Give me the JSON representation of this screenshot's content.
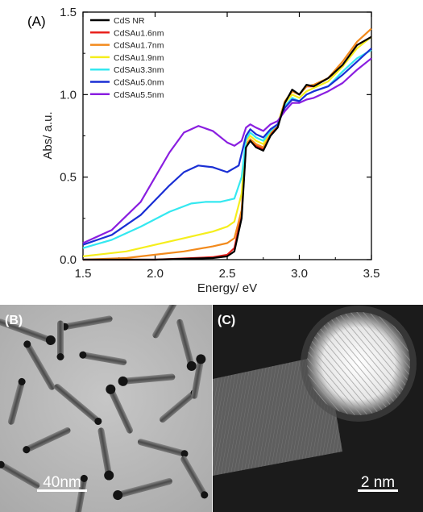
{
  "panel_labels": {
    "a": "(A)",
    "b": "(B)",
    "c": "(C)"
  },
  "scale_bars": {
    "b": {
      "label": "40nm"
    },
    "c": {
      "label": "2 nm"
    }
  },
  "chart_data": {
    "type": "line",
    "xlabel": "Energy/ eV",
    "ylabel": "Abs/ a.u.",
    "xlim": [
      1.5,
      3.5
    ],
    "ylim": [
      0.0,
      1.5
    ],
    "xticks": [
      "1.5",
      "2.0",
      "2.5",
      "3.0",
      "3.5"
    ],
    "yticks": [
      "0.0",
      "0.5",
      "1.0",
      "1.5"
    ],
    "legend_position": "top-left",
    "series": [
      {
        "name": "CdS NR",
        "color": "#000000",
        "x": [
          1.5,
          2.0,
          2.4,
          2.5,
          2.55,
          2.6,
          2.63,
          2.66,
          2.7,
          2.75,
          2.8,
          2.85,
          2.9,
          2.95,
          3.0,
          3.05,
          3.1,
          3.2,
          3.3,
          3.4,
          3.5
        ],
        "y": [
          0.0,
          0.0,
          0.01,
          0.02,
          0.05,
          0.25,
          0.68,
          0.72,
          0.68,
          0.66,
          0.75,
          0.8,
          0.95,
          1.03,
          1.0,
          1.06,
          1.05,
          1.1,
          1.18,
          1.3,
          1.35
        ]
      },
      {
        "name": "CdSAu1.6nm",
        "color": "#e8211c",
        "x": [
          1.5,
          2.0,
          2.4,
          2.5,
          2.55,
          2.6,
          2.63,
          2.66,
          2.7,
          2.75,
          2.8,
          2.85,
          2.9,
          2.95,
          3.0,
          3.05,
          3.1,
          3.2,
          3.3,
          3.4,
          3.5
        ],
        "y": [
          0.0,
          0.0,
          0.015,
          0.03,
          0.07,
          0.28,
          0.69,
          0.72,
          0.69,
          0.67,
          0.76,
          0.81,
          0.95,
          1.02,
          1.0,
          1.05,
          1.05,
          1.1,
          1.17,
          1.3,
          1.35
        ]
      },
      {
        "name": "CdSAu1.7nm",
        "color": "#f28a1c",
        "x": [
          1.5,
          1.8,
          2.0,
          2.2,
          2.4,
          2.5,
          2.55,
          2.6,
          2.63,
          2.66,
          2.7,
          2.75,
          2.8,
          2.85,
          2.9,
          2.95,
          3.0,
          3.05,
          3.1,
          3.2,
          3.3,
          3.4,
          3.5
        ],
        "y": [
          0.0,
          0.01,
          0.03,
          0.05,
          0.08,
          0.1,
          0.13,
          0.3,
          0.7,
          0.73,
          0.7,
          0.68,
          0.77,
          0.82,
          0.96,
          1.02,
          1.0,
          1.05,
          1.06,
          1.1,
          1.2,
          1.32,
          1.4
        ]
      },
      {
        "name": "CdSAu1.9nm",
        "color": "#f5ee1c",
        "x": [
          1.5,
          1.8,
          2.0,
          2.2,
          2.4,
          2.5,
          2.55,
          2.6,
          2.63,
          2.66,
          2.7,
          2.75,
          2.8,
          2.85,
          2.9,
          2.95,
          3.0,
          3.05,
          3.1,
          3.2,
          3.3,
          3.4,
          3.5
        ],
        "y": [
          0.02,
          0.05,
          0.09,
          0.13,
          0.17,
          0.2,
          0.23,
          0.4,
          0.72,
          0.75,
          0.72,
          0.7,
          0.78,
          0.82,
          0.95,
          1.0,
          0.98,
          1.02,
          1.04,
          1.08,
          1.17,
          1.28,
          1.35
        ]
      },
      {
        "name": "CdSAu3.3nm",
        "color": "#34e8f0",
        "x": [
          1.5,
          1.7,
          1.9,
          2.1,
          2.25,
          2.35,
          2.45,
          2.55,
          2.6,
          2.63,
          2.66,
          2.7,
          2.75,
          2.8,
          2.85,
          2.9,
          2.95,
          3.0,
          3.05,
          3.1,
          3.2,
          3.3,
          3.4,
          3.5
        ],
        "y": [
          0.07,
          0.12,
          0.2,
          0.29,
          0.34,
          0.35,
          0.35,
          0.37,
          0.5,
          0.73,
          0.77,
          0.74,
          0.72,
          0.78,
          0.82,
          0.93,
          0.98,
          0.96,
          1.0,
          1.02,
          1.05,
          1.14,
          1.22,
          1.27
        ]
      },
      {
        "name": "CdSAu5.0nm",
        "color": "#1a2fd4",
        "x": [
          1.5,
          1.7,
          1.9,
          2.1,
          2.2,
          2.3,
          2.4,
          2.5,
          2.58,
          2.63,
          2.66,
          2.7,
          2.75,
          2.8,
          2.85,
          2.9,
          2.95,
          3.0,
          3.05,
          3.1,
          3.2,
          3.3,
          3.4,
          3.5
        ],
        "y": [
          0.09,
          0.15,
          0.27,
          0.45,
          0.53,
          0.57,
          0.56,
          0.53,
          0.57,
          0.75,
          0.79,
          0.76,
          0.74,
          0.79,
          0.82,
          0.92,
          0.97,
          0.96,
          1.0,
          1.02,
          1.05,
          1.12,
          1.2,
          1.28
        ]
      },
      {
        "name": "CdSAu5.5nm",
        "color": "#8a1ee0",
        "x": [
          1.5,
          1.7,
          1.9,
          2.0,
          2.1,
          2.2,
          2.3,
          2.4,
          2.5,
          2.55,
          2.6,
          2.63,
          2.66,
          2.7,
          2.75,
          2.8,
          2.85,
          2.9,
          2.95,
          3.0,
          3.05,
          3.1,
          3.2,
          3.3,
          3.4,
          3.5
        ],
        "y": [
          0.1,
          0.18,
          0.35,
          0.5,
          0.65,
          0.77,
          0.81,
          0.78,
          0.71,
          0.69,
          0.72,
          0.8,
          0.82,
          0.8,
          0.78,
          0.82,
          0.84,
          0.9,
          0.95,
          0.95,
          0.97,
          0.98,
          1.02,
          1.07,
          1.15,
          1.22
        ]
      }
    ]
  }
}
